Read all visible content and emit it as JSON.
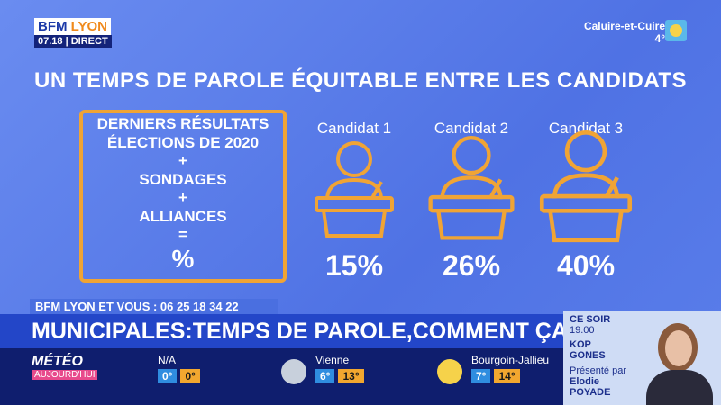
{
  "logo": {
    "brand": "BFM",
    "city": "LYON",
    "time": "07.18",
    "live": "DIRECT"
  },
  "local_weather": {
    "city": "Caluire-et-Cuire",
    "temp": "4°"
  },
  "slide": {
    "title": "UN TEMPS DE PAROLE ÉQUITABLE ENTRE LES CANDIDATS",
    "formula": [
      "DERNIERS RÉSULTATS",
      "ÉLECTIONS DE 2020",
      "+",
      "SONDAGES",
      "+",
      "ALLIANCES",
      "=",
      "%"
    ],
    "candidates": [
      {
        "name": "Candidat 1",
        "share": "15%"
      },
      {
        "name": "Candidat 2",
        "share": "26%"
      },
      {
        "name": "Candidat 3",
        "share": "40%"
      }
    ]
  },
  "ticker": "BFM LYON ET VOUS : 06 25 18 34 22",
  "headline": "MUNICIPALES:TEMPS DE PAROLE,COMMENT ÇA MARCHE?",
  "promo": {
    "when": "CE SOIR",
    "time": "19.00",
    "show": [
      "KOP",
      "GONES"
    ],
    "presented_by": "Présenté par",
    "host": [
      "Elodie",
      "POYADE"
    ]
  },
  "weather": {
    "title": "MÉTÉO",
    "subtitle": "AUJOURD'HUI",
    "cities": [
      {
        "name": "N/A",
        "min": "0°",
        "max": "0°"
      },
      {
        "name": "Vienne",
        "min": "6°",
        "max": "13°"
      },
      {
        "name": "Bourgoin-Jallieu",
        "min": "7°",
        "max": "14°"
      }
    ]
  }
}
